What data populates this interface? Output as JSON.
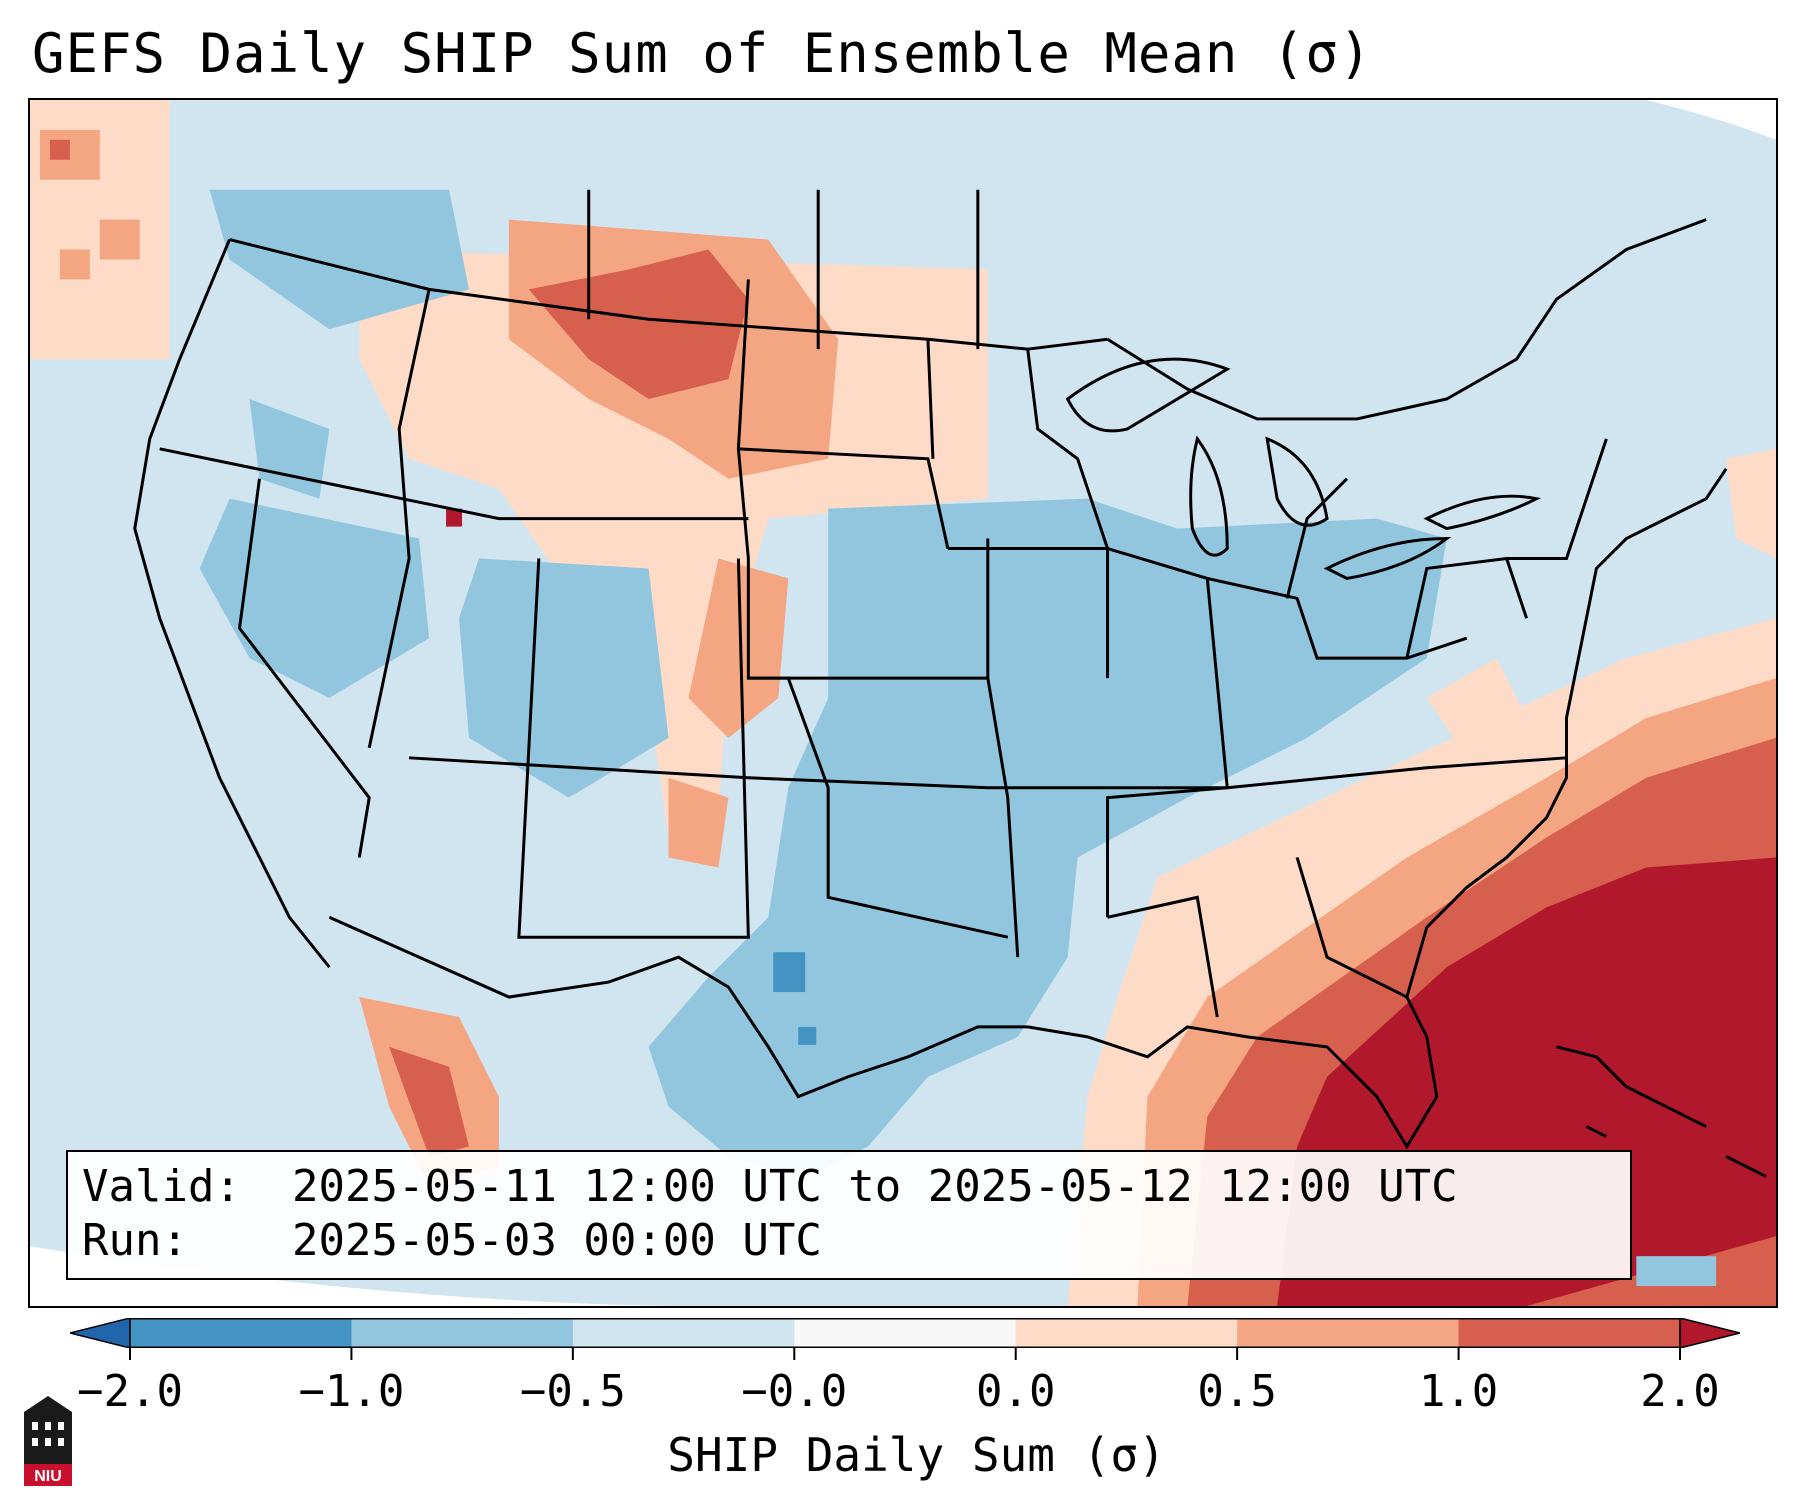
{
  "title": "GEFS Daily SHIP Sum of Ensemble Mean (σ)",
  "info": {
    "valid_key": "Valid:",
    "valid_value": "2025-05-11 12:00 UTC to 2025-05-12 12:00 UTC",
    "run_key": "Run:",
    "run_value": "2025-05-03 00:00 UTC"
  },
  "colorbar": {
    "title": "SHIP Daily Sum (σ)",
    "tick_labels": [
      "−2.0",
      "−1.0",
      "−0.5",
      "−0.0",
      "0.0",
      "0.5",
      "1.0",
      "2.0"
    ],
    "bins": [
      {
        "range": "< -2.0",
        "color": "#2166ac"
      },
      {
        "range": "-2.0 to -1.0",
        "color": "#4393c3"
      },
      {
        "range": "-1.0 to -0.5",
        "color": "#92c5de"
      },
      {
        "range": "-0.5 to -0.0",
        "color": "#d1e5f0"
      },
      {
        "range": "-0.0 to 0.0",
        "color": "#f7f7f7"
      },
      {
        "range": "0.0 to 0.5",
        "color": "#fddbc7"
      },
      {
        "range": "0.5 to 1.0",
        "color": "#f4a582"
      },
      {
        "range": "1.0 to 2.0",
        "color": "#d6604d"
      },
      {
        "range": "> 2.0",
        "color": "#b2182b"
      }
    ]
  },
  "logo": {
    "text": "NIU"
  }
}
